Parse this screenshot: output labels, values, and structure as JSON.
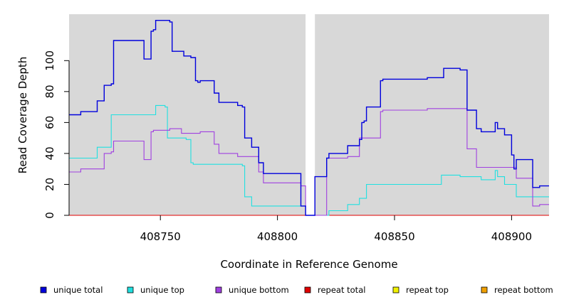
{
  "chart_data": {
    "type": "line",
    "step": true,
    "xlabel": "Coordinate in Reference Genome",
    "ylabel": "Read Coverage Depth",
    "xlim": [
      408711,
      408916
    ],
    "ylim": [
      0,
      130
    ],
    "xticks": [
      408750,
      408800,
      408850,
      408900
    ],
    "yticks": [
      0,
      20,
      40,
      60,
      80,
      100
    ],
    "gap": [
      408812,
      408816
    ],
    "legend_position": "bottom",
    "series": [
      {
        "name": "unique total",
        "color": "#0000dd",
        "points": [
          [
            408711,
            65
          ],
          [
            408716,
            67
          ],
          [
            408723,
            74
          ],
          [
            408726,
            84
          ],
          [
            408729,
            85
          ],
          [
            408730,
            113
          ],
          [
            408743,
            101
          ],
          [
            408746,
            119
          ],
          [
            408747,
            120
          ],
          [
            408748,
            126
          ],
          [
            408754,
            125
          ],
          [
            408755,
            106
          ],
          [
            408760,
            103
          ],
          [
            408763,
            102
          ],
          [
            408765,
            87
          ],
          [
            408766,
            86
          ],
          [
            408767,
            87
          ],
          [
            408773,
            79
          ],
          [
            408775,
            73
          ],
          [
            408783,
            71
          ],
          [
            408785,
            70
          ],
          [
            408786,
            50
          ],
          [
            408789,
            44
          ],
          [
            408792,
            34
          ],
          [
            408794,
            27
          ],
          [
            408810,
            6
          ],
          [
            408812,
            0
          ],
          [
            408816,
            25
          ],
          [
            408821,
            37
          ],
          [
            408822,
            40
          ],
          [
            408830,
            45
          ],
          [
            408835,
            49
          ],
          [
            408836,
            60
          ],
          [
            408837,
            61
          ],
          [
            408838,
            70
          ],
          [
            408844,
            87
          ],
          [
            408845,
            88
          ],
          [
            408864,
            89
          ],
          [
            408871,
            95
          ],
          [
            408878,
            94
          ],
          [
            408881,
            68
          ],
          [
            408885,
            56
          ],
          [
            408887,
            54
          ],
          [
            408893,
            60
          ],
          [
            408894,
            56
          ],
          [
            408897,
            52
          ],
          [
            408900,
            39
          ],
          [
            408901,
            30
          ],
          [
            408902,
            36
          ],
          [
            408909,
            18
          ],
          [
            408912,
            19
          ],
          [
            408916,
            19
          ]
        ]
      },
      {
        "name": "unique top",
        "color": "#20e0e0",
        "points": [
          [
            408711,
            37
          ],
          [
            408723,
            44
          ],
          [
            408729,
            65
          ],
          [
            408748,
            71
          ],
          [
            408752,
            70
          ],
          [
            408753,
            50
          ],
          [
            408761,
            49
          ],
          [
            408763,
            34
          ],
          [
            408764,
            33
          ],
          [
            408785,
            32
          ],
          [
            408786,
            12
          ],
          [
            408789,
            6
          ],
          [
            408810,
            6
          ],
          [
            408812,
            0
          ],
          [
            408816,
            0
          ],
          [
            408822,
            3
          ],
          [
            408830,
            7
          ],
          [
            408835,
            11
          ],
          [
            408838,
            20
          ],
          [
            408870,
            26
          ],
          [
            408878,
            25
          ],
          [
            408887,
            23
          ],
          [
            408893,
            29
          ],
          [
            408894,
            25
          ],
          [
            408897,
            20
          ],
          [
            408902,
            12
          ],
          [
            408916,
            12
          ]
        ]
      },
      {
        "name": "unique bottom",
        "color": "#a040e0",
        "points": [
          [
            408711,
            28
          ],
          [
            408716,
            30
          ],
          [
            408726,
            40
          ],
          [
            408729,
            41
          ],
          [
            408730,
            48
          ],
          [
            408743,
            36
          ],
          [
            408746,
            54
          ],
          [
            408747,
            55
          ],
          [
            408754,
            56
          ],
          [
            408759,
            53
          ],
          [
            408767,
            54
          ],
          [
            408773,
            46
          ],
          [
            408775,
            40
          ],
          [
            408783,
            38
          ],
          [
            408792,
            28
          ],
          [
            408794,
            21
          ],
          [
            408810,
            19
          ],
          [
            408812,
            0
          ],
          [
            408816,
            0
          ],
          [
            408821,
            37
          ],
          [
            408830,
            38
          ],
          [
            408835,
            50
          ],
          [
            408844,
            67
          ],
          [
            408845,
            68
          ],
          [
            408864,
            69
          ],
          [
            408881,
            43
          ],
          [
            408885,
            31
          ],
          [
            408902,
            24
          ],
          [
            408909,
            6
          ],
          [
            408912,
            7
          ],
          [
            408916,
            7
          ]
        ]
      },
      {
        "name": "repeat total",
        "color": "#e00000",
        "points": [
          [
            408711,
            0
          ],
          [
            408916,
            0
          ]
        ]
      },
      {
        "name": "repeat top",
        "color": "#f0f000",
        "points": [
          [
            408711,
            0
          ],
          [
            408916,
            0
          ]
        ]
      },
      {
        "name": "repeat bottom",
        "color": "#f0a000",
        "points": [
          [
            408711,
            0
          ],
          [
            408916,
            0
          ]
        ]
      }
    ]
  }
}
